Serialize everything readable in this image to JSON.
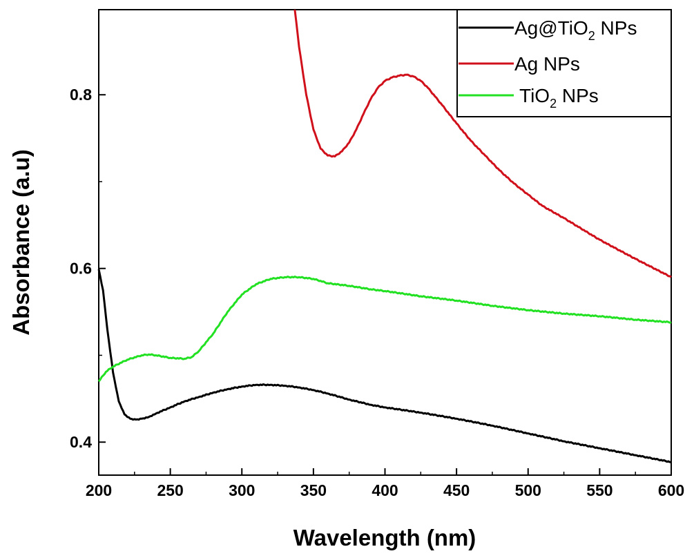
{
  "chart_data": {
    "type": "line",
    "title": "",
    "xlabel": "Wavelength (nm)",
    "ylabel": "Absorbance (a.u)",
    "xlim": [
      200,
      600
    ],
    "ylim": [
      0.362,
      0.898
    ],
    "x_ticks": [
      200,
      250,
      300,
      350,
      400,
      450,
      500,
      550,
      600
    ],
    "x_tick_labels": [
      "200",
      "250",
      "300",
      "350",
      "400",
      "450",
      "500",
      "550",
      "600"
    ],
    "y_ticks": [
      0.4,
      0.6,
      0.8
    ],
    "y_tick_labels": [
      "0.4",
      "0.6",
      "0.8"
    ],
    "grid": false,
    "legend_position": "top-right",
    "series": [
      {
        "name": "Ag@TiO2 NPs",
        "legend_main": "Ag@TiO",
        "legend_sub": "2",
        "legend_tail": " NPs",
        "color": "#000000",
        "x": [
          200,
          203,
          206,
          210,
          214,
          218,
          222,
          226,
          230,
          235,
          240,
          250,
          260,
          270,
          280,
          290,
          300,
          310,
          320,
          330,
          340,
          350,
          360,
          375,
          390,
          400,
          425,
          450,
          475,
          500,
          525,
          550,
          575,
          600
        ],
        "y": [
          0.599,
          0.575,
          0.53,
          0.48,
          0.447,
          0.432,
          0.427,
          0.426,
          0.427,
          0.429,
          0.433,
          0.44,
          0.447,
          0.452,
          0.457,
          0.461,
          0.464,
          0.466,
          0.466,
          0.465,
          0.463,
          0.46,
          0.456,
          0.449,
          0.443,
          0.44,
          0.434,
          0.427,
          0.419,
          0.41,
          0.401,
          0.393,
          0.385,
          0.377
        ]
      },
      {
        "name": "Ag NPs",
        "legend_main": "Ag NPs",
        "legend_sub": "",
        "legend_tail": "",
        "color": "#d0101a",
        "x": [
          337,
          340,
          345,
          350,
          355,
          360,
          365,
          370,
          375,
          380,
          385,
          390,
          395,
          400,
          405,
          410,
          415,
          420,
          425,
          430,
          435,
          440,
          450,
          460,
          470,
          480,
          490,
          500,
          510,
          525,
          550,
          575,
          600
        ],
        "y": [
          0.898,
          0.855,
          0.8,
          0.76,
          0.738,
          0.73,
          0.729,
          0.735,
          0.745,
          0.76,
          0.778,
          0.795,
          0.808,
          0.816,
          0.82,
          0.822,
          0.823,
          0.821,
          0.816,
          0.808,
          0.798,
          0.788,
          0.767,
          0.747,
          0.73,
          0.713,
          0.698,
          0.685,
          0.672,
          0.658,
          0.633,
          0.611,
          0.59
        ]
      },
      {
        "name": "TiO2 NPs",
        "legend_main": "TiO",
        "legend_sub": "2",
        "legend_tail": " NPs",
        "color": "#22e022",
        "x": [
          200,
          205,
          210,
          220,
          230,
          235,
          240,
          250,
          260,
          265,
          270,
          280,
          290,
          300,
          310,
          320,
          330,
          340,
          350,
          360,
          375,
          390,
          400,
          425,
          450,
          475,
          500,
          525,
          550,
          575,
          600
        ],
        "y": [
          0.47,
          0.481,
          0.487,
          0.495,
          0.5,
          0.501,
          0.5,
          0.497,
          0.496,
          0.498,
          0.505,
          0.525,
          0.55,
          0.57,
          0.582,
          0.588,
          0.59,
          0.59,
          0.588,
          0.583,
          0.58,
          0.576,
          0.574,
          0.568,
          0.563,
          0.557,
          0.552,
          0.548,
          0.545,
          0.541,
          0.538
        ]
      }
    ]
  }
}
